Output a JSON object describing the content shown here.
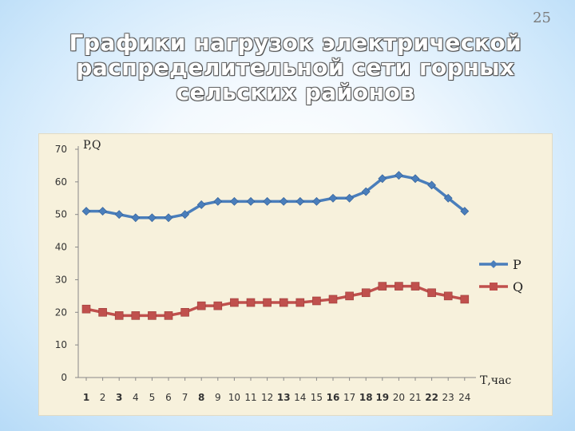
{
  "slide": {
    "number": "25",
    "title_lines": [
      "Графики нагрузок электрической",
      "распределительной сети горных",
      "сельских районов"
    ]
  },
  "chart_data": {
    "type": "line",
    "title": "",
    "ylabel": "P,Q",
    "xlabel": "Т,час",
    "categories": [
      "1",
      "2",
      "3",
      "4",
      "5",
      "6",
      "7",
      "8",
      "9",
      "10",
      "11",
      "12",
      "13",
      "14",
      "15",
      "16",
      "17",
      "18",
      "19",
      "20",
      "21",
      "22",
      "23",
      "24"
    ],
    "y_ticks": [
      0,
      10,
      20,
      30,
      40,
      50,
      60,
      70
    ],
    "ylim": [
      0,
      70
    ],
    "grid": false,
    "legend_position": "right",
    "series": [
      {
        "name": "P",
        "color": "#4a7ebb",
        "marker": "diamond",
        "values": [
          51,
          51,
          50,
          49,
          49,
          49,
          50,
          53,
          54,
          54,
          54,
          54,
          54,
          54,
          54,
          55,
          55,
          57,
          61,
          62,
          61,
          59,
          55,
          51
        ]
      },
      {
        "name": "Q",
        "color": "#c0504d",
        "marker": "square",
        "values": [
          21,
          20,
          19,
          19,
          19,
          19,
          20,
          22,
          22,
          23,
          23,
          23,
          23,
          23,
          23.5,
          24,
          25,
          26,
          28,
          28,
          28,
          26,
          25,
          24
        ]
      }
    ]
  }
}
